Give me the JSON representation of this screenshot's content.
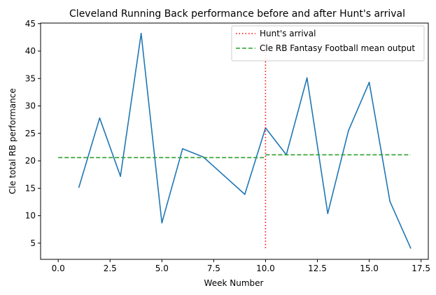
{
  "chart_data": {
    "type": "line",
    "title": "Cleveland Running Back performance before and after Hunt's arrival",
    "xlabel": "Week Number",
    "ylabel": "Cle total RB performance",
    "xlim": [
      -0.85,
      17.85
    ],
    "ylim": [
      2.05,
      45.1
    ],
    "xticks": [
      0.0,
      2.5,
      5.0,
      7.5,
      10.0,
      12.5,
      15.0,
      17.5
    ],
    "xtick_labels": [
      "0.0",
      "2.5",
      "5.0",
      "7.5",
      "10.0",
      "12.5",
      "15.0",
      "17.5"
    ],
    "yticks": [
      5,
      10,
      15,
      20,
      25,
      30,
      35,
      40,
      45
    ],
    "ytick_labels": [
      "5",
      "10",
      "15",
      "20",
      "25",
      "30",
      "35",
      "40",
      "45"
    ],
    "grid": false,
    "legend_position": "top-right",
    "series": [
      {
        "legend": "",
        "style": "solid",
        "color": "#1f77b4",
        "x": [
          1,
          2,
          3,
          4,
          5,
          6,
          7,
          8,
          9,
          10,
          11,
          12,
          13,
          14,
          15,
          16,
          17
        ],
        "y": [
          15.2,
          27.8,
          17.2,
          43.2,
          8.7,
          22.2,
          20.7,
          17.3,
          13.9,
          26.0,
          21.1,
          35.1,
          10.4,
          25.5,
          34.3,
          12.6,
          4.1
        ]
      },
      {
        "legend": "Hunt's arrival",
        "style": "dotted",
        "color": "#ff0000",
        "x": [
          10,
          10
        ],
        "y": [
          4.1,
          43.2
        ]
      },
      {
        "legend": "Cle RB Fantasy Football mean output",
        "style": "dashed",
        "color": "#2ca02c",
        "segments": [
          {
            "x": [
              0,
              10
            ],
            "y": [
              20.6,
              20.6
            ]
          },
          {
            "x": [
              10,
              17
            ],
            "y": [
              21.1,
              21.1
            ]
          }
        ]
      }
    ]
  }
}
